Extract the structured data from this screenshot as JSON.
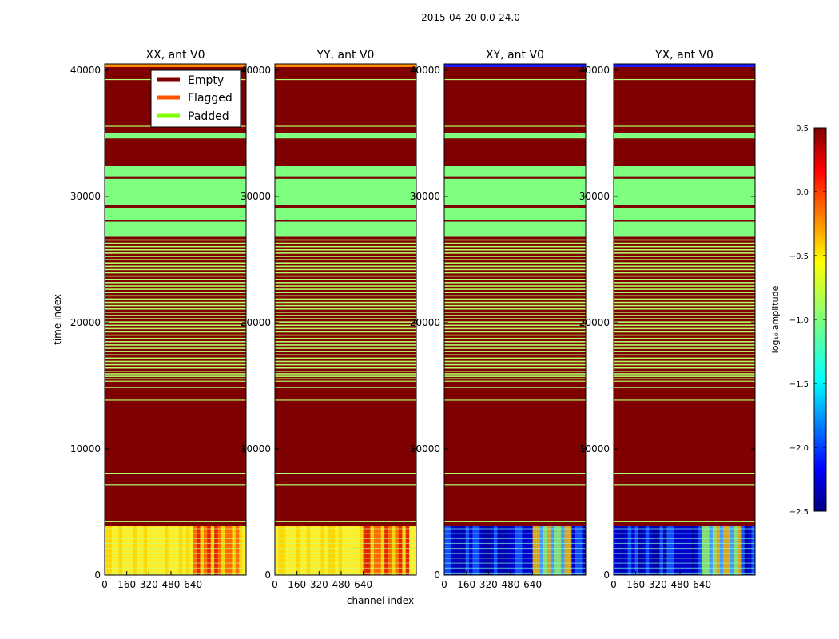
{
  "chart_data": {
    "type": "heatmap",
    "suptitle": "2015-04-20 0.0-24.0",
    "xlabel": "channel index",
    "ylabel": "time index",
    "xlim": [
      0,
      1024
    ],
    "ylim": [
      0,
      40500
    ],
    "x_ticks": [
      0,
      160,
      320,
      480,
      640
    ],
    "y_ticks": [
      0,
      10000,
      20000,
      30000,
      40000
    ],
    "panels": [
      {
        "title": "XX, ant V0",
        "kind": "auto"
      },
      {
        "title": "YY, ant V0",
        "kind": "auto"
      },
      {
        "title": "XY, ant V0",
        "kind": "cross"
      },
      {
        "title": "YX, ant V0",
        "kind": "cross"
      }
    ],
    "legend": {
      "position": "top-right of first panel",
      "entries": [
        {
          "label": "Empty",
          "color": "#800000"
        },
        {
          "label": "Flagged",
          "color": "#ff5500"
        },
        {
          "label": "Padded",
          "color": "#7fff00"
        }
      ]
    },
    "colorbar": {
      "label": "log₁₀ amplitude",
      "range": [
        -2.5,
        0.5
      ],
      "ticks": [
        "0.5",
        "0.0",
        "−0.5",
        "−1.0",
        "−1.5",
        "−2.0",
        "−2.5"
      ],
      "colormap": "jet"
    },
    "padded_time_ranges": [
      [
        26800,
        28000
      ],
      [
        28150,
        29100
      ],
      [
        29300,
        31400
      ],
      [
        31600,
        32400
      ],
      [
        34600,
        35000
      ]
    ],
    "data_time_range": [
      0,
      3900
    ],
    "empty_lines": [
      4300,
      7200,
      8100,
      13900,
      14900,
      15400,
      35600,
      39300
    ]
  }
}
